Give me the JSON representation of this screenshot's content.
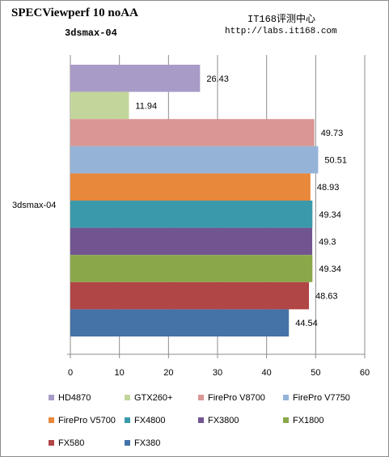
{
  "header": {
    "title": "SPECViewperf 10 noAA",
    "subtitle": "3dsmax-04",
    "site_name": "IT168评测中心",
    "site_url": "http://labs.it168.com"
  },
  "chart_data": {
    "type": "bar",
    "orientation": "horizontal",
    "categories": [
      "3dsmax-04"
    ],
    "series": [
      {
        "name": "HD4870",
        "values": [
          26.43
        ],
        "color": "#a99bc7"
      },
      {
        "name": "GTX260+",
        "values": [
          11.94
        ],
        "color": "#c2d69b"
      },
      {
        "name": "FirePro V8700",
        "values": [
          49.73
        ],
        "color": "#d99694"
      },
      {
        "name": "FirePro V7750",
        "values": [
          50.51
        ],
        "color": "#95b3d7"
      },
      {
        "name": "FirePro V5700",
        "values": [
          48.93
        ],
        "color": "#e8883a"
      },
      {
        "name": "FX4800",
        "values": [
          49.34
        ],
        "color": "#3a9aab"
      },
      {
        "name": "FX3800",
        "values": [
          49.3
        ],
        "color": "#725590"
      },
      {
        "name": "FX1800",
        "values": [
          49.34
        ],
        "color": "#8aa84a"
      },
      {
        "name": "FX580",
        "values": [
          48.63
        ],
        "color": "#b04645"
      },
      {
        "name": "FX380",
        "values": [
          44.54
        ],
        "color": "#4572a7"
      }
    ],
    "xlim": [
      0,
      60
    ],
    "x_ticks": [
      0,
      10,
      20,
      30,
      40,
      50,
      60
    ],
    "grid": true,
    "legend_position": "bottom"
  }
}
